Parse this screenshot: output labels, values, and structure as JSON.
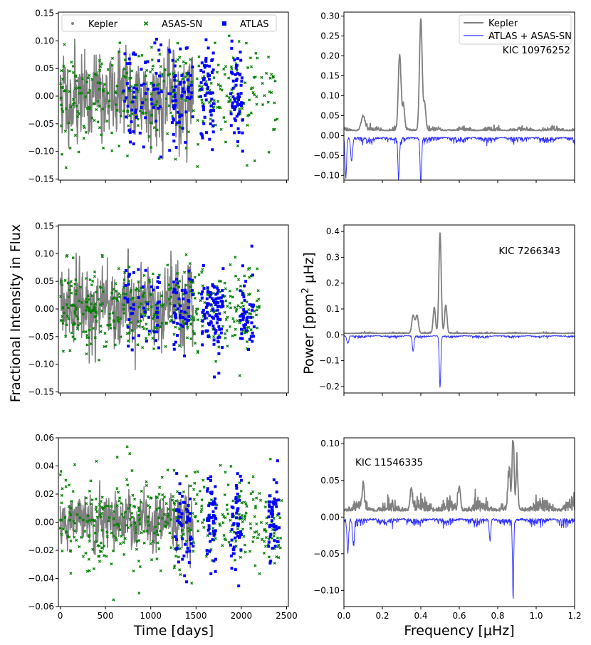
{
  "figure": {
    "ylabel_left": "Fractional Intensity in Flux",
    "ylabel_right": "Power [ppm² μHz]",
    "ylabel_right_parts": {
      "pre": "Power [ppm",
      "sup": "2",
      "post": " μHz]"
    },
    "xlabel_left": "Time [days]",
    "xlabel_right": "Frequency [μHz]",
    "colors": {
      "kepler": "#808080",
      "asassn": "#008000",
      "atlas": "#0000ff",
      "atlas_asassn_line": "#3333ff"
    }
  },
  "chart_data": [
    {
      "id": "lc-kic10976252",
      "type": "scatter",
      "row": 0,
      "column": "time",
      "xlim": [
        -20,
        2520
      ],
      "ylim": [
        -0.152,
        0.152
      ],
      "xticks": [
        0,
        500,
        1000,
        1500,
        2000,
        2500
      ],
      "show_xtick_labels": false,
      "yticks": [
        -0.15,
        -0.1,
        -0.05,
        0.0,
        0.05,
        0.1,
        0.15
      ],
      "ytick_labels": [
        "−0.15",
        "−0.10",
        "−0.05",
        "0.00",
        "0.05",
        "0.10",
        "0.15"
      ],
      "legend": [
        {
          "key": "kepler",
          "label": "Kepler",
          "marker": "dot"
        },
        {
          "key": "asassn",
          "label": "ASAS-SN",
          "marker": "x"
        },
        {
          "key": "atlas",
          "label": "ATLAS",
          "marker": "square"
        }
      ],
      "series": [
        {
          "name": "Kepler",
          "style": "line",
          "x_range": [
            0,
            1470
          ],
          "amp": 0.048,
          "n": 560,
          "seed": 11
        },
        {
          "name": "ASAS-SN",
          "style": "x",
          "x_range": [
            0,
            2400
          ],
          "amp": 0.11,
          "n": 330,
          "seed": 12
        },
        {
          "name": "ATLAS",
          "style": "square",
          "groups": [
            [
              700,
              1120
            ],
            [
              1200,
              1470
            ],
            [
              1550,
              1700
            ],
            [
              1880,
              2020
            ]
          ],
          "amp": 0.11,
          "n": 250,
          "seed": 13
        }
      ]
    },
    {
      "id": "ps-kic10976252",
      "type": "line",
      "row": 0,
      "column": "freq",
      "xlim": [
        0,
        1.2
      ],
      "ylim": [
        -0.112,
        0.31
      ],
      "xticks": [
        0,
        0.2,
        0.4,
        0.6,
        0.8,
        1.0,
        1.2
      ],
      "show_xtick_labels": false,
      "yticks": [
        -0.1,
        -0.05,
        0.0,
        0.05,
        0.1,
        0.15,
        0.2,
        0.25,
        0.3
      ],
      "ytick_labels": [
        "−0.10",
        "−0.05",
        "0.00",
        "0.05",
        "0.10",
        "0.15",
        "0.20",
        "0.25",
        "0.30"
      ],
      "annotation": "KIC 10976252",
      "legend": [
        {
          "key": "kepler",
          "label": "Kepler"
        },
        {
          "key": "atlas_asassn_line",
          "label": "ATLAS + ASAS-SN"
        }
      ],
      "series": [
        {
          "name": "Kepler",
          "sign": 1,
          "base": 0.012,
          "noise": 0.012,
          "peaks": [
            [
              0.29,
              0.19,
              0.007
            ],
            [
              0.4,
              0.28,
              0.007
            ],
            [
              0.31,
              0.06,
              0.006
            ],
            [
              0.42,
              0.065,
              0.006
            ],
            [
              0.1,
              0.035,
              0.01
            ]
          ],
          "seed": 21
        },
        {
          "name": "ATLAS + ASAS-SN",
          "sign": -1,
          "base": 0.004,
          "noise": 0.018,
          "peaks": [
            [
              0.285,
              0.09,
              0.004
            ],
            [
              0.4,
              0.11,
              0.004
            ],
            [
              0.01,
              0.1,
              0.004
            ],
            [
              0.04,
              0.06,
              0.005
            ]
          ],
          "seed": 22
        }
      ]
    },
    {
      "id": "lc-kic7266343",
      "type": "scatter",
      "row": 1,
      "column": "time",
      "xlim": [
        -20,
        2520
      ],
      "ylim": [
        -0.152,
        0.152
      ],
      "xticks": [
        0,
        500,
        1000,
        1500,
        2000,
        2500
      ],
      "show_xtick_labels": false,
      "yticks": [
        -0.15,
        -0.1,
        -0.05,
        0.0,
        0.05,
        0.1,
        0.15
      ],
      "ytick_labels": [
        "−0.15",
        "−0.10",
        "−0.05",
        "0.00",
        "0.05",
        "0.10",
        "0.15"
      ],
      "series": [
        {
          "name": "Kepler",
          "style": "line",
          "x_range": [
            0,
            1470
          ],
          "amp": 0.045,
          "n": 560,
          "seed": 31
        },
        {
          "name": "ASAS-SN",
          "style": "x",
          "x_range": [
            0,
            2200
          ],
          "amp": 0.09,
          "n": 420,
          "seed": 32
        },
        {
          "name": "ATLAS",
          "style": "square",
          "groups": [
            [
              700,
              1120
            ],
            [
              1250,
              1470
            ],
            [
              1550,
              1700
            ],
            [
              1700,
              1800
            ],
            [
              1980,
              2150
            ]
          ],
          "amp": 0.09,
          "n": 240,
          "seed": 33
        }
      ]
    },
    {
      "id": "ps-kic7266343",
      "type": "line",
      "row": 1,
      "column": "freq",
      "xlim": [
        0,
        1.2
      ],
      "ylim": [
        -0.225,
        0.425
      ],
      "xticks": [
        0,
        0.2,
        0.4,
        0.6,
        0.8,
        1.0,
        1.2
      ],
      "show_xtick_labels": false,
      "yticks": [
        -0.2,
        -0.1,
        0.0,
        0.1,
        0.2,
        0.3,
        0.4
      ],
      "ytick_labels": [
        "−0.2",
        "−0.1",
        "0.0",
        "0.1",
        "0.2",
        "0.3",
        "0.4"
      ],
      "annotation": "KIC 7266343",
      "series": [
        {
          "name": "Kepler",
          "sign": 1,
          "base": 0.005,
          "noise": 0.006,
          "peaks": [
            [
              0.5,
              0.39,
              0.006
            ],
            [
              0.53,
              0.11,
              0.006
            ],
            [
              0.47,
              0.1,
              0.006
            ],
            [
              0.36,
              0.07,
              0.007
            ],
            [
              0.38,
              0.07,
              0.007
            ]
          ],
          "seed": 41
        },
        {
          "name": "ATLAS + ASAS-SN",
          "sign": -1,
          "base": 0.003,
          "noise": 0.012,
          "peaks": [
            [
              0.5,
              0.2,
              0.004
            ],
            [
              0.36,
              0.06,
              0.004
            ],
            [
              0.02,
              0.03,
              0.005
            ]
          ],
          "seed": 42
        }
      ]
    },
    {
      "id": "lc-kic11546335",
      "type": "scatter",
      "row": 2,
      "column": "time",
      "xlim": [
        -20,
        2520
      ],
      "ylim": [
        -0.06,
        0.06
      ],
      "xticks": [
        0,
        500,
        1000,
        1500,
        2000,
        2500
      ],
      "show_xtick_labels": true,
      "xtick_labels": [
        "0",
        "500",
        "1000",
        "1500",
        "2000",
        "2500"
      ],
      "yticks": [
        -0.06,
        -0.04,
        -0.02,
        0.0,
        0.02,
        0.04,
        0.06
      ],
      "ytick_labels": [
        "−0.06",
        "−0.04",
        "−0.02",
        "0.00",
        "0.02",
        "0.04",
        "0.06"
      ],
      "series": [
        {
          "name": "Kepler",
          "style": "line",
          "x_range": [
            0,
            1470
          ],
          "amp": 0.012,
          "n": 560,
          "seed": 51
        },
        {
          "name": "ASAS-SN",
          "style": "x",
          "x_range": [
            0,
            2450
          ],
          "amp": 0.038,
          "n": 420,
          "seed": 52
        },
        {
          "name": "ATLAS",
          "style": "square",
          "groups": [
            [
              1270,
              1470
            ],
            [
              1620,
              1720
            ],
            [
              1880,
              2000
            ],
            [
              2300,
              2420
            ]
          ],
          "amp": 0.038,
          "n": 200,
          "seed": 53
        }
      ]
    },
    {
      "id": "ps-kic11546335",
      "type": "line",
      "row": 2,
      "column": "freq",
      "xlim": [
        0,
        1.2
      ],
      "ylim": [
        -0.122,
        0.108
      ],
      "xticks": [
        0,
        0.2,
        0.4,
        0.6,
        0.8,
        1.0,
        1.2
      ],
      "show_xtick_labels": true,
      "xtick_labels": [
        "0.0",
        "0.2",
        "0.4",
        "0.6",
        "0.8",
        "1.0",
        "1.2"
      ],
      "yticks": [
        -0.1,
        -0.05,
        0.0,
        0.05,
        0.1
      ],
      "ytick_labels": [
        "−0.10",
        "−0.05",
        "0.00",
        "0.05",
        "0.10"
      ],
      "annotation": "KIC 11546335",
      "series": [
        {
          "name": "Kepler",
          "sign": 1,
          "base": 0.008,
          "noise": 0.02,
          "peaks": [
            [
              0.88,
              0.095,
              0.005
            ],
            [
              0.9,
              0.06,
              0.005
            ],
            [
              0.86,
              0.05,
              0.006
            ],
            [
              0.1,
              0.03,
              0.006
            ],
            [
              0.35,
              0.028,
              0.006
            ],
            [
              0.6,
              0.03,
              0.006
            ]
          ],
          "seed": 61
        },
        {
          "name": "ATLAS + ASAS-SN",
          "sign": -1,
          "base": 0.002,
          "noise": 0.012,
          "peaks": [
            [
              0.88,
              0.11,
              0.003
            ],
            [
              0.02,
              0.045,
              0.004
            ],
            [
              0.05,
              0.03,
              0.004
            ],
            [
              0.76,
              0.03,
              0.004
            ]
          ],
          "seed": 62
        }
      ]
    }
  ]
}
